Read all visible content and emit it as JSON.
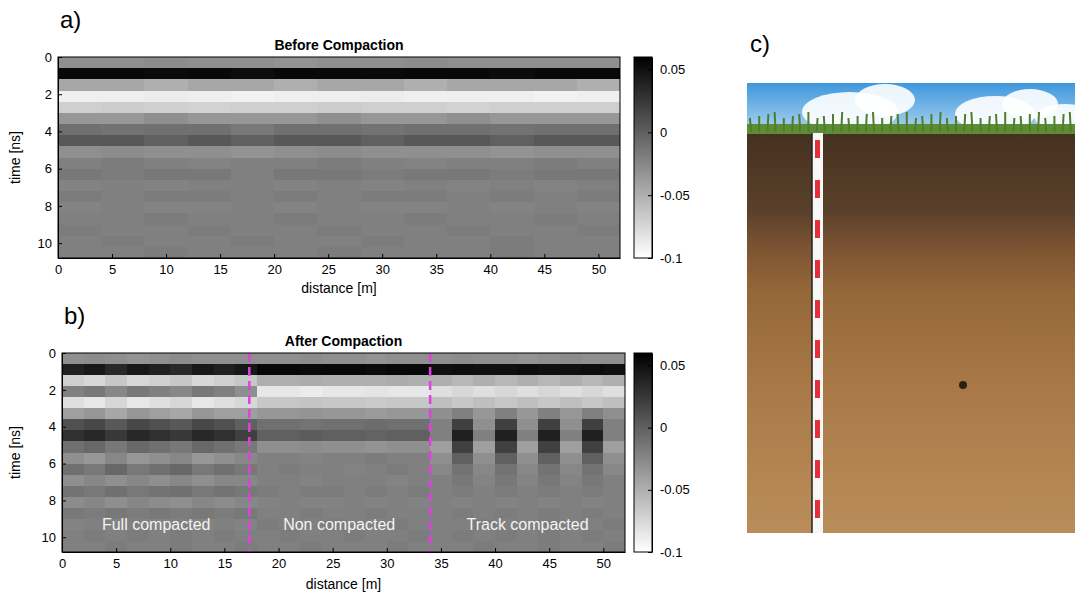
{
  "chart_data": [
    {
      "type": "heatmap",
      "panel": "a)",
      "title": "Before Compaction",
      "x_label": "distance [m]",
      "y_label": "time [ns]",
      "xlim": [
        0,
        52
      ],
      "xticks": [
        0,
        5,
        10,
        15,
        20,
        25,
        30,
        35,
        40,
        45,
        50
      ],
      "ylim": [
        0,
        10.8
      ],
      "yticks": [
        0,
        2,
        4,
        6,
        8,
        10
      ],
      "x_bins": [
        0,
        4,
        8,
        12,
        16,
        20,
        24,
        28,
        32,
        36,
        40,
        44,
        48,
        52
      ],
      "y_bins": [
        0,
        0.6,
        1.2,
        1.8,
        2.4,
        3.0,
        3.6,
        4.2,
        4.8,
        5.4,
        6.0,
        6.6,
        7.2,
        7.8,
        8.4,
        9.0,
        9.6,
        10.2,
        10.8
      ],
      "values": [
        [
          -0.03,
          -0.03,
          -0.028,
          -0.03,
          -0.03,
          -0.032,
          -0.03,
          -0.03,
          -0.028,
          -0.03,
          -0.03,
          -0.03,
          -0.03
        ],
        [
          0.055,
          0.055,
          0.054,
          0.055,
          0.052,
          0.055,
          0.055,
          0.054,
          0.055,
          0.055,
          0.053,
          0.055,
          0.055
        ],
        [
          -0.045,
          -0.045,
          -0.05,
          -0.045,
          -0.045,
          -0.05,
          -0.045,
          -0.045,
          -0.05,
          -0.045,
          -0.045,
          -0.045,
          -0.05
        ],
        [
          -0.09,
          -0.09,
          -0.088,
          -0.09,
          -0.092,
          -0.09,
          -0.09,
          -0.088,
          -0.09,
          -0.09,
          -0.09,
          -0.092,
          -0.09
        ],
        [
          -0.07,
          -0.068,
          -0.07,
          -0.072,
          -0.07,
          -0.07,
          -0.068,
          -0.07,
          -0.07,
          -0.072,
          -0.07,
          -0.07,
          -0.07
        ],
        [
          -0.035,
          -0.035,
          -0.03,
          -0.035,
          -0.035,
          -0.035,
          -0.03,
          -0.035,
          -0.035,
          -0.03,
          -0.035,
          -0.035,
          -0.035
        ],
        [
          -0.01,
          -0.012,
          -0.01,
          -0.01,
          -0.015,
          -0.01,
          -0.01,
          -0.012,
          -0.01,
          -0.01,
          -0.012,
          -0.01,
          -0.01
        ],
        [
          0.005,
          0.005,
          0.0,
          0.005,
          0.0,
          0.005,
          0.005,
          0.0,
          0.005,
          0.005,
          0.0,
          0.005,
          0.005
        ],
        [
          -0.03,
          -0.028,
          -0.03,
          -0.03,
          -0.032,
          -0.03,
          -0.028,
          -0.03,
          -0.03,
          -0.03,
          -0.032,
          -0.03,
          -0.03
        ],
        [
          -0.02,
          -0.018,
          -0.02,
          -0.022,
          -0.02,
          -0.02,
          -0.018,
          -0.02,
          -0.022,
          -0.02,
          -0.02,
          -0.018,
          -0.02
        ],
        [
          -0.015,
          -0.018,
          -0.015,
          -0.015,
          -0.02,
          -0.015,
          -0.015,
          -0.018,
          -0.015,
          -0.015,
          -0.018,
          -0.015,
          -0.015
        ],
        [
          -0.022,
          -0.02,
          -0.022,
          -0.02,
          -0.02,
          -0.022,
          -0.02,
          -0.022,
          -0.02,
          -0.022,
          -0.02,
          -0.022,
          -0.02
        ],
        [
          -0.018,
          -0.02,
          -0.018,
          -0.018,
          -0.02,
          -0.018,
          -0.02,
          -0.018,
          -0.018,
          -0.02,
          -0.018,
          -0.02,
          -0.018
        ],
        [
          -0.022,
          -0.02,
          -0.022,
          -0.022,
          -0.02,
          -0.022,
          -0.02,
          -0.022,
          -0.022,
          -0.02,
          -0.022,
          -0.02,
          -0.022
        ],
        [
          -0.02,
          -0.02,
          -0.018,
          -0.02,
          -0.02,
          -0.018,
          -0.02,
          -0.02,
          -0.018,
          -0.02,
          -0.02,
          -0.018,
          -0.02
        ],
        [
          -0.018,
          -0.02,
          -0.02,
          -0.018,
          -0.02,
          -0.02,
          -0.018,
          -0.02,
          -0.02,
          -0.018,
          -0.02,
          -0.02,
          -0.018
        ],
        [
          -0.02,
          -0.018,
          -0.02,
          -0.02,
          -0.018,
          -0.02,
          -0.02,
          -0.018,
          -0.02,
          -0.02,
          -0.018,
          -0.02,
          -0.02
        ],
        [
          -0.02,
          -0.02,
          -0.018,
          -0.02,
          -0.02,
          -0.02,
          -0.018,
          -0.02,
          -0.02,
          -0.02,
          -0.018,
          -0.02,
          -0.02
        ]
      ],
      "colorbar": {
        "range": [
          -0.1,
          0.06
        ],
        "ticks": [
          0.05,
          0,
          -0.05,
          -0.1
        ]
      }
    },
    {
      "type": "heatmap",
      "panel": "b)",
      "title": "After Compaction",
      "x_label": "distance [m]",
      "y_label": "time [ns]",
      "xlim": [
        0,
        52
      ],
      "xticks": [
        0,
        5,
        10,
        15,
        20,
        25,
        30,
        35,
        40,
        45,
        50
      ],
      "ylim": [
        0,
        10.8
      ],
      "yticks": [
        0,
        2,
        4,
        6,
        8,
        10
      ],
      "x_bins": [
        0,
        2,
        4,
        6,
        8,
        10,
        12,
        14,
        16,
        18,
        20,
        22,
        24,
        26,
        28,
        30,
        32,
        34,
        36,
        38,
        40,
        42,
        44,
        46,
        48,
        50,
        52
      ],
      "y_bins": [
        0,
        0.6,
        1.2,
        1.8,
        2.4,
        3.0,
        3.6,
        4.2,
        4.8,
        5.4,
        6.0,
        6.6,
        7.2,
        7.8,
        8.4,
        9.0,
        9.6,
        10.2,
        10.8
      ],
      "values": [
        [
          -0.03,
          -0.028,
          -0.03,
          -0.032,
          -0.03,
          -0.028,
          -0.03,
          -0.03,
          -0.03,
          -0.03,
          -0.03,
          -0.028,
          -0.03,
          -0.03,
          -0.032,
          -0.03,
          -0.03,
          -0.03,
          -0.028,
          -0.03,
          -0.03,
          -0.032,
          -0.03,
          -0.028,
          -0.03,
          -0.03
        ],
        [
          0.04,
          0.045,
          0.035,
          0.045,
          0.04,
          0.035,
          0.045,
          0.04,
          0.045,
          0.055,
          0.055,
          0.054,
          0.055,
          0.055,
          0.053,
          0.055,
          0.055,
          0.05,
          0.052,
          0.05,
          0.05,
          0.052,
          0.05,
          0.05,
          0.052,
          0.05
        ],
        [
          -0.07,
          -0.075,
          -0.065,
          -0.075,
          -0.07,
          -0.065,
          -0.075,
          -0.07,
          -0.065,
          -0.05,
          -0.05,
          -0.048,
          -0.05,
          -0.05,
          -0.05,
          -0.048,
          -0.05,
          -0.05,
          -0.055,
          -0.05,
          -0.055,
          -0.05,
          -0.055,
          -0.05,
          -0.055,
          -0.05
        ],
        [
          -0.02,
          -0.015,
          -0.025,
          -0.015,
          -0.02,
          -0.025,
          -0.015,
          -0.02,
          -0.03,
          -0.085,
          -0.085,
          -0.088,
          -0.085,
          -0.085,
          -0.083,
          -0.085,
          -0.085,
          -0.08,
          -0.075,
          -0.08,
          -0.075,
          -0.08,
          -0.075,
          -0.08,
          -0.075,
          -0.08
        ],
        [
          -0.08,
          -0.085,
          -0.075,
          -0.085,
          -0.08,
          -0.075,
          -0.085,
          -0.08,
          -0.075,
          -0.065,
          -0.065,
          -0.063,
          -0.065,
          -0.065,
          -0.067,
          -0.065,
          -0.065,
          -0.06,
          -0.065,
          -0.06,
          -0.065,
          -0.06,
          -0.065,
          -0.06,
          -0.065,
          -0.06
        ],
        [
          -0.04,
          -0.035,
          -0.045,
          -0.035,
          -0.04,
          -0.045,
          -0.035,
          -0.04,
          -0.04,
          -0.035,
          -0.035,
          -0.033,
          -0.035,
          -0.035,
          -0.037,
          -0.035,
          -0.035,
          -0.03,
          -0.02,
          -0.035,
          -0.02,
          -0.035,
          -0.02,
          -0.035,
          -0.02,
          -0.03
        ],
        [
          0.01,
          0.015,
          0.005,
          0.015,
          0.01,
          0.005,
          0.015,
          0.01,
          0.0,
          -0.01,
          -0.01,
          -0.012,
          -0.01,
          -0.01,
          -0.008,
          -0.01,
          -0.01,
          -0.02,
          0.02,
          -0.03,
          0.02,
          -0.03,
          0.02,
          -0.03,
          0.02,
          -0.02
        ],
        [
          0.03,
          0.035,
          0.025,
          0.035,
          0.03,
          0.025,
          0.035,
          0.03,
          0.02,
          0.0,
          0.0,
          0.002,
          0.0,
          0.0,
          -0.002,
          0.0,
          0.0,
          -0.02,
          0.04,
          -0.02,
          0.04,
          -0.02,
          0.04,
          -0.02,
          0.04,
          -0.02
        ],
        [
          -0.01,
          -0.005,
          -0.015,
          -0.005,
          -0.01,
          -0.015,
          -0.005,
          -0.01,
          -0.015,
          -0.03,
          -0.03,
          -0.028,
          -0.03,
          -0.03,
          -0.032,
          -0.03,
          -0.03,
          -0.04,
          0.02,
          -0.04,
          0.02,
          -0.04,
          0.02,
          -0.04,
          0.02,
          -0.04
        ],
        [
          -0.03,
          -0.035,
          -0.025,
          -0.035,
          -0.03,
          -0.025,
          -0.035,
          -0.03,
          -0.025,
          -0.02,
          -0.02,
          -0.022,
          -0.02,
          -0.02,
          -0.018,
          -0.02,
          -0.02,
          -0.03,
          0.0,
          -0.03,
          0.0,
          -0.03,
          0.0,
          -0.03,
          0.0,
          -0.03
        ],
        [
          -0.01,
          -0.015,
          -0.005,
          -0.015,
          -0.01,
          -0.005,
          -0.015,
          -0.01,
          -0.015,
          -0.02,
          -0.018,
          -0.02,
          -0.02,
          -0.022,
          -0.02,
          -0.018,
          -0.02,
          -0.025,
          -0.012,
          -0.025,
          -0.012,
          -0.025,
          -0.012,
          -0.025,
          -0.012,
          -0.025
        ],
        [
          -0.03,
          -0.025,
          -0.03,
          -0.025,
          -0.03,
          -0.025,
          -0.03,
          -0.025,
          -0.025,
          -0.02,
          -0.02,
          -0.022,
          -0.02,
          -0.02,
          -0.02,
          -0.022,
          -0.02,
          -0.02,
          -0.015,
          -0.022,
          -0.015,
          -0.022,
          -0.015,
          -0.022,
          -0.015,
          -0.02
        ],
        [
          -0.012,
          -0.015,
          -0.01,
          -0.015,
          -0.012,
          -0.01,
          -0.015,
          -0.012,
          -0.015,
          -0.018,
          -0.02,
          -0.018,
          -0.018,
          -0.02,
          -0.018,
          -0.02,
          -0.018,
          -0.02,
          -0.018,
          -0.02,
          -0.018,
          -0.02,
          -0.018,
          -0.02,
          -0.018,
          -0.02
        ],
        [
          -0.028,
          -0.025,
          -0.03,
          -0.025,
          -0.028,
          -0.03,
          -0.025,
          -0.028,
          -0.025,
          -0.022,
          -0.02,
          -0.022,
          -0.022,
          -0.02,
          -0.022,
          -0.02,
          -0.022,
          -0.02,
          -0.022,
          -0.02,
          -0.022,
          -0.02,
          -0.022,
          -0.02,
          -0.022,
          -0.02
        ],
        [
          -0.015,
          -0.018,
          -0.015,
          -0.018,
          -0.015,
          -0.018,
          -0.015,
          -0.018,
          -0.015,
          -0.02,
          -0.02,
          -0.018,
          -0.02,
          -0.02,
          -0.018,
          -0.02,
          -0.02,
          -0.02,
          -0.018,
          -0.02,
          -0.018,
          -0.02,
          -0.018,
          -0.02,
          -0.018,
          -0.02
        ],
        [
          -0.022,
          -0.02,
          -0.022,
          -0.02,
          -0.022,
          -0.02,
          -0.022,
          -0.02,
          -0.022,
          -0.018,
          -0.02,
          -0.02,
          -0.018,
          -0.02,
          -0.02,
          -0.018,
          -0.02,
          -0.02,
          -0.02,
          -0.018,
          -0.02,
          -0.02,
          -0.018,
          -0.02,
          -0.02,
          -0.018
        ],
        [
          -0.02,
          -0.018,
          -0.02,
          -0.018,
          -0.02,
          -0.018,
          -0.02,
          -0.018,
          -0.02,
          -0.02,
          -0.018,
          -0.02,
          -0.02,
          -0.018,
          -0.02,
          -0.02,
          -0.018,
          -0.02,
          -0.018,
          -0.02,
          -0.018,
          -0.02,
          -0.018,
          -0.02,
          -0.018,
          -0.02
        ],
        [
          -0.02,
          -0.02,
          -0.018,
          -0.02,
          -0.02,
          -0.018,
          -0.02,
          -0.02,
          -0.018,
          -0.02,
          -0.02,
          -0.018,
          -0.02,
          -0.02,
          -0.02,
          -0.018,
          -0.02,
          -0.02,
          -0.02,
          -0.018,
          -0.02,
          -0.02,
          -0.018,
          -0.02,
          -0.02,
          -0.018
        ]
      ],
      "colorbar": {
        "range": [
          -0.1,
          0.06
        ],
        "ticks": [
          0.05,
          0,
          -0.05,
          -0.1
        ]
      },
      "vlines": [
        {
          "x": 17.3,
          "color": "#e040e0",
          "line_style": "dashed"
        },
        {
          "x": 34,
          "color": "#e040e0",
          "line_style": "dashed"
        }
      ],
      "annotations": [
        {
          "text": "Full compacted",
          "x": 8.7,
          "y": 9.4
        },
        {
          "text": "Non compacted",
          "x": 25.6,
          "y": 9.4
        },
        {
          "text": "Track compacted",
          "x": 43,
          "y": 9.4
        }
      ]
    }
  ],
  "photo": {
    "panel": "c)"
  }
}
